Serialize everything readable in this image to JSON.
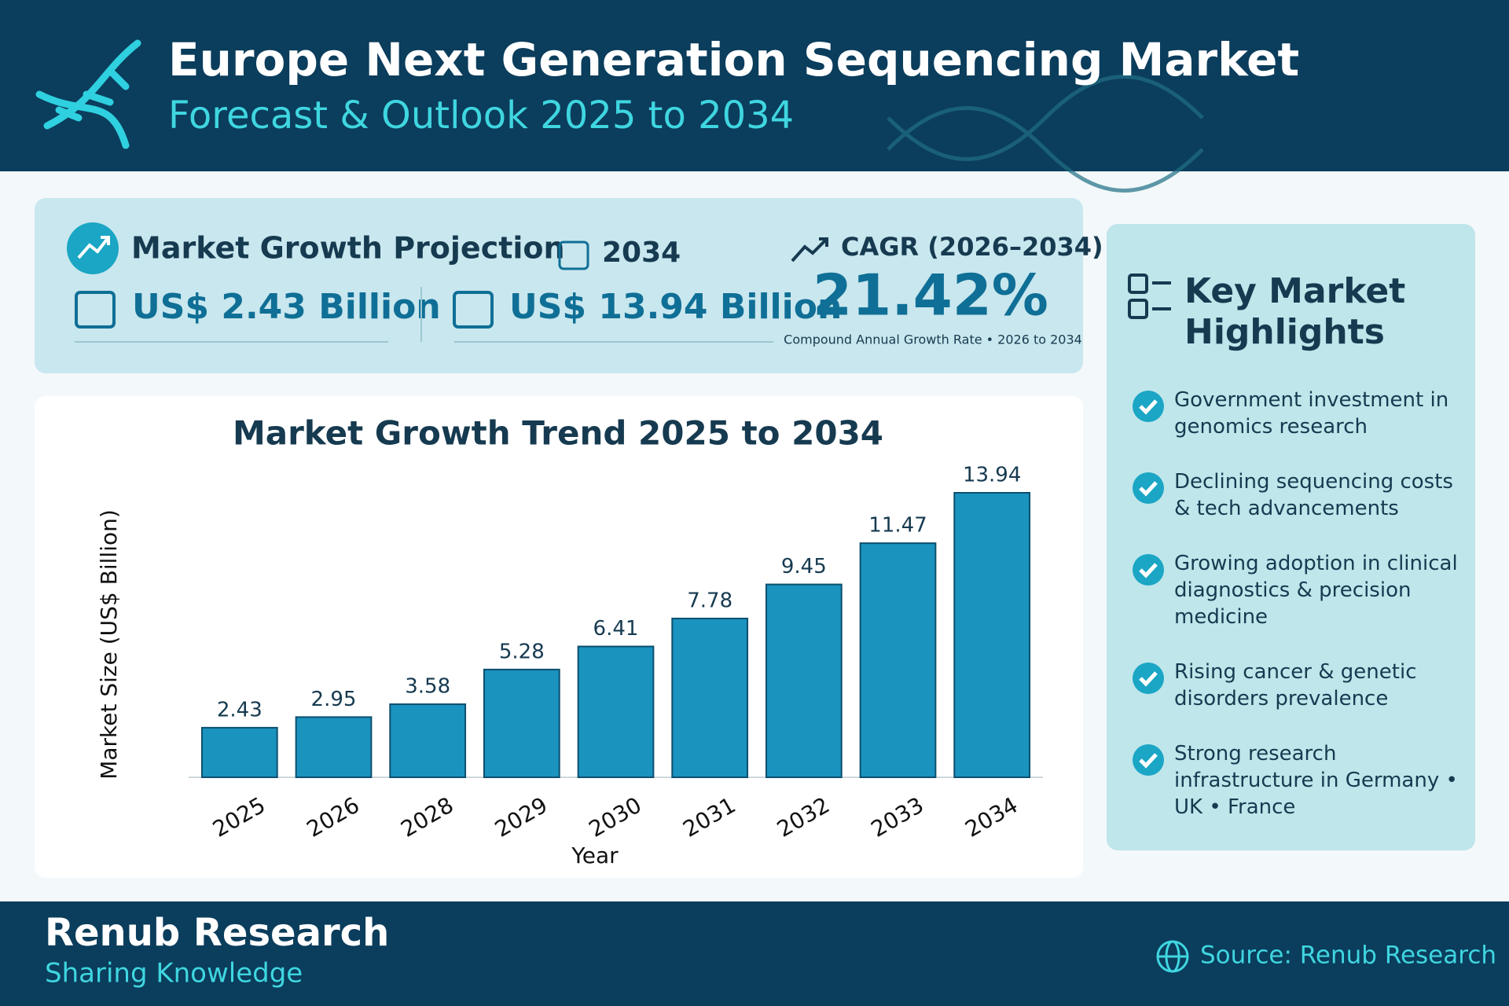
{
  "header": {
    "title": "Europe Next Generation Sequencing Market",
    "subtitle": "Forecast & Outlook 2025 to 2034"
  },
  "summary": {
    "heading": "Market Growth Projection",
    "year": "2034",
    "start_value": "US$ 2.43 Billion",
    "end_value": "US$ 13.94 Billion",
    "cagr_label": "CAGR (2026–2034)",
    "cagr_value": "21.42%",
    "cagr_note": "Compound Annual Growth Rate • 2026 to 2034"
  },
  "chart_data": {
    "type": "bar",
    "title": "Market Growth Trend 2025 to 2034",
    "x_label": "Year",
    "y_label": "Market Size (US$ Billion)",
    "categories": [
      "2025",
      "2026",
      "2028",
      "2029",
      "2030",
      "2031",
      "2032",
      "2033",
      "2034"
    ],
    "values": [
      2.43,
      2.95,
      3.58,
      5.28,
      6.41,
      7.78,
      9.45,
      11.47,
      13.94
    ],
    "color": "#1a93bf"
  },
  "highlights": {
    "title": "Key Market Highlights",
    "items": [
      "Government investment in genomics research",
      "Declining sequencing costs & tech advancements",
      "Growing adoption in clinical diagnostics & precision medicine",
      "Rising cancer & genetic disorders prevalence",
      "Strong research infrastructure in Germany • UK • France"
    ]
  },
  "footer": {
    "brand": "Renub Research",
    "tagline": "Sharing Knowledge",
    "source": "Source: Renub Research"
  }
}
